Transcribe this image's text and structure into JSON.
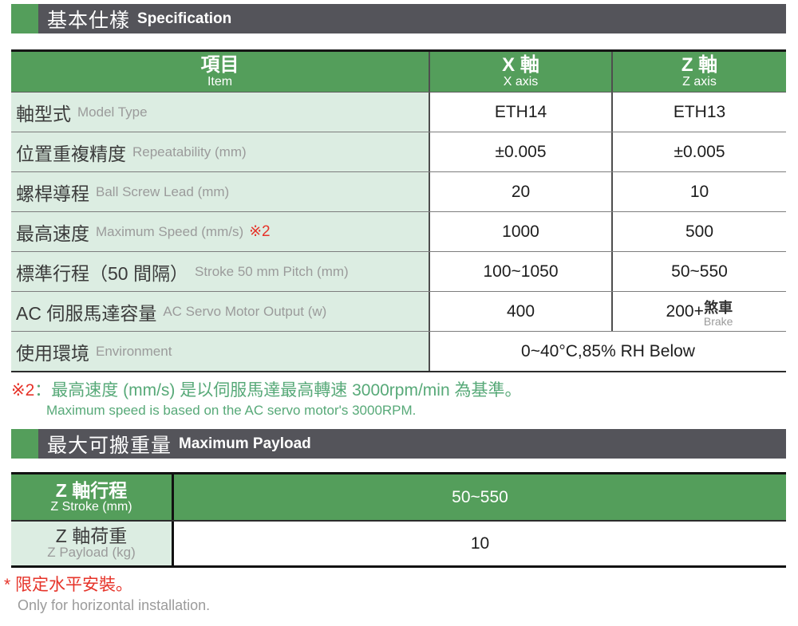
{
  "colors": {
    "green": "#549e5b",
    "light_green": "#dcede2",
    "dark_bar": "#54545a",
    "note_green": "#57a978",
    "red": "#e63329",
    "gray_text": "#9b9b9b"
  },
  "section_spec": {
    "title_zh": "基本仕樣",
    "title_en": "Specification"
  },
  "spec_table": {
    "header": {
      "item_zh": "項目",
      "item_en": "Item",
      "x_zh": "X 軸",
      "x_en": "X axis",
      "z_zh": "Z 軸",
      "z_en": "Z axis"
    },
    "rows": [
      {
        "label_zh": "軸型式",
        "label_en": "Model Type",
        "x": "ETH14",
        "z": "ETH13"
      },
      {
        "label_zh": "位置重複精度",
        "label_en": "Repeatability (mm)",
        "x": "±0.005",
        "z": "±0.005"
      },
      {
        "label_zh": "螺桿導程",
        "label_en": "Ball Screw Lead (mm)",
        "x": "20",
        "z": "10"
      },
      {
        "label_zh": "最高速度",
        "label_en": "Maximum Speed (mm/s)",
        "note_ref": "※2",
        "x": "1000",
        "z": "500"
      },
      {
        "label_zh": "標準行程（50 間隔）",
        "label_en": "Stroke 50 mm Pitch (mm)",
        "x": "100~1050",
        "z": "50~550"
      },
      {
        "label_zh": "AC 伺服馬達容量",
        "label_en": "AC Servo Motor Output (w)",
        "x": "400",
        "z_main": "200+",
        "z_brake_zh": "煞車",
        "z_brake_en": "Brake"
      },
      {
        "label_zh": "使用環境",
        "label_en": "Environment",
        "merged_value": "0~40°C,85% RH Below"
      }
    ]
  },
  "footnote2": {
    "marker": "※2",
    "text_zh": "：最高速度 (mm/s) 是以伺服馬達最高轉速 3000rpm/min 為基準。",
    "text_en": "Maximum speed is based on the AC servo motor's 3000RPM."
  },
  "section_payload": {
    "title_zh": "最大可搬重量",
    "title_en": "Maximum Payload"
  },
  "payload_table": {
    "rows": [
      {
        "label_zh": "Z 軸行程",
        "label_en": "Z Stroke (mm)",
        "value": "50~550"
      },
      {
        "label_zh": "Z 軸荷重",
        "label_en": "Z Payload (kg)",
        "value": "10"
      }
    ]
  },
  "footer": {
    "text_zh": "* 限定水平安裝。",
    "text_en": "Only for horizontal installation."
  }
}
